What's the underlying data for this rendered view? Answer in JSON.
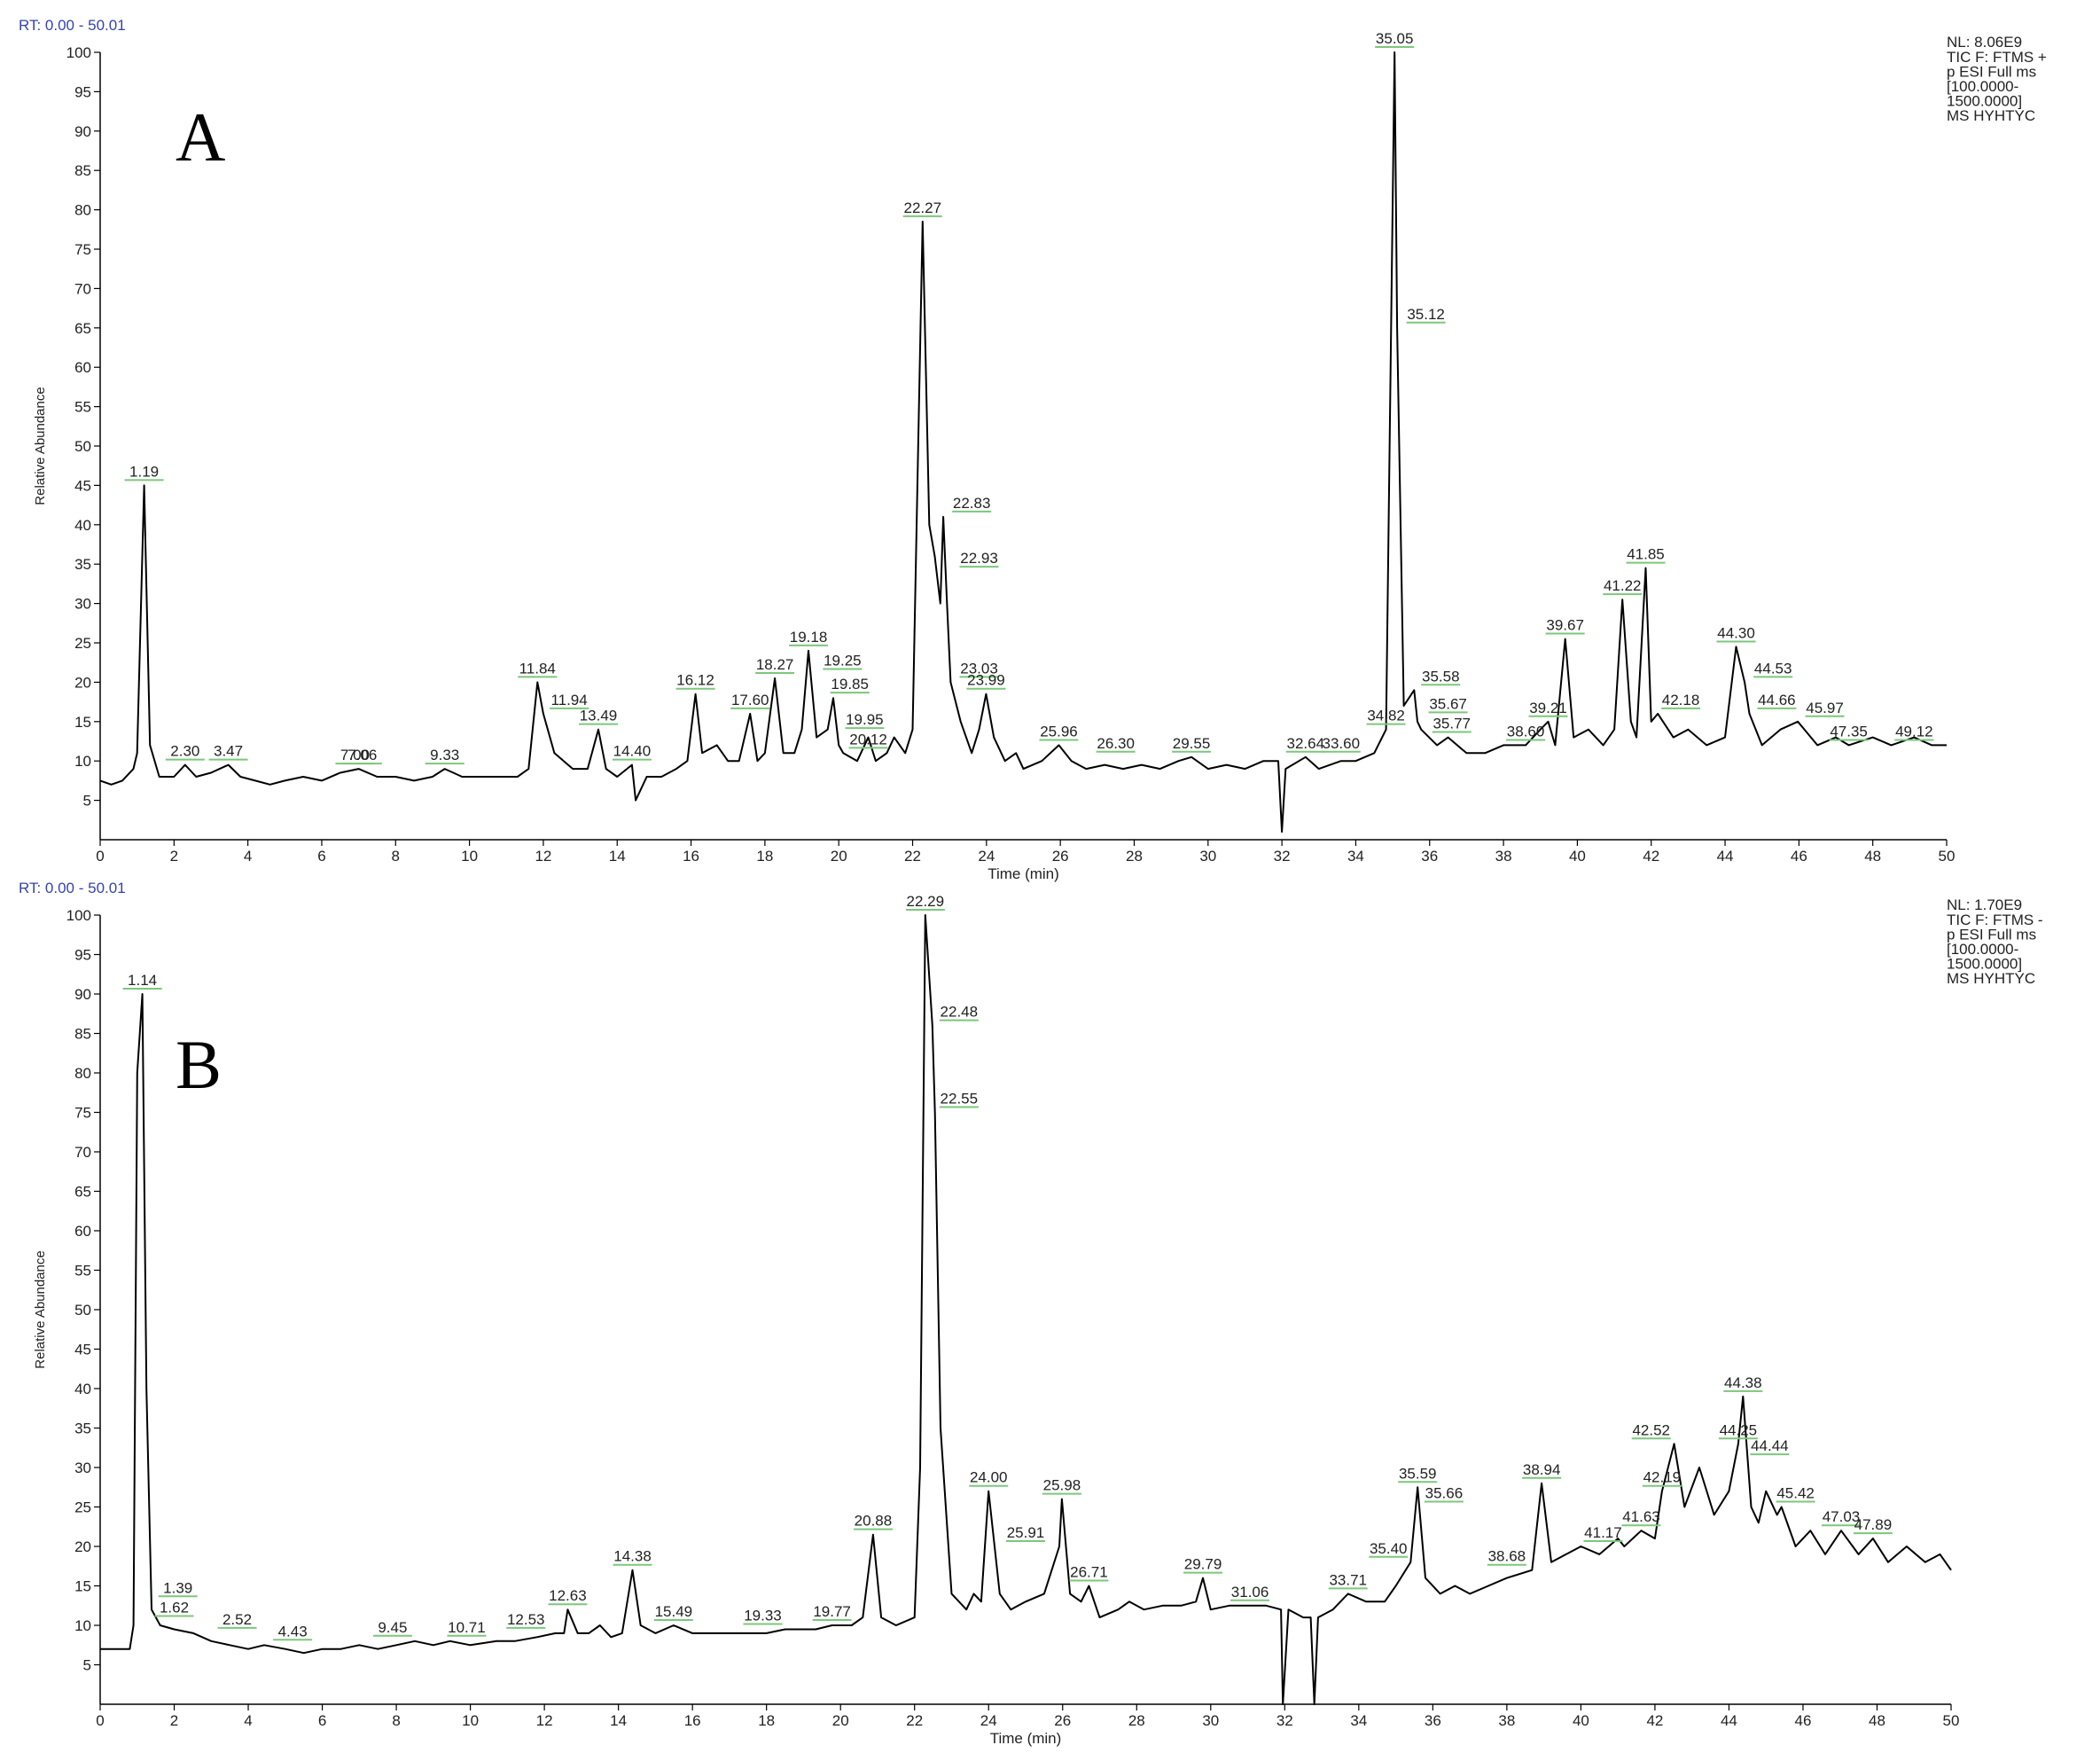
{
  "chart_data": [
    {
      "type": "line",
      "panel": "A",
      "rt": "RT: 0.00 - 50.01",
      "nl": "NL: 8.06E9",
      "info": [
        "TIC F: FTMS +",
        "p ESI Full ms",
        "[100.0000-",
        "1500.0000]",
        "MS HYHTYC"
      ],
      "ylabel": "Relative Abundance",
      "xlabel": "Time (min)",
      "xlim": [
        0,
        50
      ],
      "ylim": [
        0,
        100
      ],
      "xticks": [
        0,
        2,
        4,
        6,
        8,
        10,
        12,
        14,
        16,
        18,
        20,
        22,
        24,
        26,
        28,
        30,
        32,
        34,
        36,
        38,
        40,
        42,
        44,
        46,
        48,
        50
      ],
      "yticks": [
        5,
        10,
        15,
        20,
        25,
        30,
        35,
        40,
        45,
        50,
        55,
        60,
        65,
        70,
        75,
        80,
        85,
        90,
        95,
        100
      ],
      "annotation_line_color": "#7cc77c",
      "x": [
        0,
        0.3,
        0.6,
        0.9,
        1.0,
        1.19,
        1.35,
        1.6,
        2.0,
        2.3,
        2.6,
        3.0,
        3.47,
        3.8,
        4.2,
        4.6,
        5.0,
        5.5,
        6.0,
        6.5,
        7.0,
        7.5,
        8.0,
        8.5,
        9.0,
        9.33,
        9.8,
        10.3,
        10.8,
        11.3,
        11.6,
        11.84,
        12.0,
        12.3,
        12.8,
        13.2,
        13.49,
        13.7,
        14.0,
        14.4,
        14.5,
        14.8,
        15.2,
        15.6,
        15.9,
        16.12,
        16.3,
        16.7,
        17.0,
        17.3,
        17.6,
        17.8,
        18.0,
        18.27,
        18.5,
        18.8,
        19.0,
        19.18,
        19.4,
        19.7,
        19.85,
        20.0,
        20.12,
        20.5,
        20.8,
        21.0,
        21.3,
        21.5,
        21.8,
        22.0,
        22.27,
        22.45,
        22.6,
        22.75,
        22.83,
        22.93,
        23.03,
        23.3,
        23.6,
        23.8,
        23.99,
        24.2,
        24.5,
        24.8,
        25.0,
        25.5,
        25.96,
        26.3,
        26.7,
        27.2,
        27.7,
        28.2,
        28.7,
        29.2,
        29.55,
        30.0,
        30.5,
        31.0,
        31.5,
        31.9,
        32.0,
        32.1,
        32.64,
        33.0,
        33.6,
        34.0,
        34.5,
        34.82,
        35.05,
        35.12,
        35.3,
        35.58,
        35.67,
        35.77,
        36.2,
        36.5,
        37.0,
        37.5,
        38.0,
        38.6,
        39.0,
        39.21,
        39.4,
        39.67,
        39.9,
        40.3,
        40.7,
        41.0,
        41.22,
        41.45,
        41.6,
        41.85,
        42.0,
        42.18,
        42.6,
        43.0,
        43.5,
        44.0,
        44.3,
        44.53,
        44.66,
        45.0,
        45.5,
        45.97,
        46.5,
        47.0,
        47.35,
        48.0,
        48.5,
        49.12,
        49.6,
        50.0
      ],
      "series": [
        {
          "color": "#000000",
          "values": [
            7.5,
            7,
            7.5,
            9,
            11,
            45,
            12,
            8,
            8,
            9.5,
            8,
            8.5,
            9.5,
            8,
            7.5,
            7,
            7.5,
            8,
            7.5,
            8.5,
            9,
            8,
            8,
            7.5,
            8,
            9,
            8,
            8,
            8,
            8,
            9,
            20,
            16,
            11,
            9,
            9,
            14,
            9,
            8,
            9.5,
            5,
            8,
            8,
            9,
            10,
            18.5,
            11,
            12,
            10,
            10,
            16,
            10,
            11,
            20.5,
            11,
            11,
            14,
            24,
            13,
            14,
            18,
            12,
            11,
            10,
            13,
            10,
            11,
            13,
            11,
            14,
            78.5,
            40,
            36,
            30,
            41,
            30,
            20,
            15,
            11,
            14,
            18.5,
            13,
            10,
            11,
            9,
            10,
            12,
            10,
            9,
            9.5,
            9,
            9.5,
            9,
            10,
            10.5,
            9,
            9.5,
            9,
            10,
            10,
            1,
            9,
            10.5,
            9,
            10,
            10,
            11,
            14,
            100,
            65,
            17,
            19,
            15,
            14,
            12,
            13,
            11,
            11,
            12,
            12,
            14,
            15,
            12,
            25.5,
            13,
            14,
            12,
            14,
            30.5,
            15,
            13,
            34.5,
            15,
            16,
            13,
            14,
            12,
            13,
            24.5,
            20,
            16,
            12,
            14,
            15,
            12,
            13,
            12,
            13,
            12,
            13,
            12,
            12
          ]
        }
      ],
      "annotations": [
        {
          "text": "1.19",
          "x": 1.19,
          "y": 45
        },
        {
          "text": "2.30",
          "x": 2.3,
          "y": 9.5
        },
        {
          "text": "3.47",
          "x": 3.47,
          "y": 9.5
        },
        {
          "text": "7.00",
          "x": 6.9,
          "y": 9
        },
        {
          "text": "7.06",
          "x": 7.1,
          "y": 9
        },
        {
          "text": "9.33",
          "x": 9.33,
          "y": 9
        },
        {
          "text": "11.84",
          "x": 11.84,
          "y": 20
        },
        {
          "text": "11.94",
          "x": 12.7,
          "y": 16
        },
        {
          "text": "13.49",
          "x": 13.49,
          "y": 14
        },
        {
          "text": "14.40",
          "x": 14.4,
          "y": 9.5
        },
        {
          "text": "16.12",
          "x": 16.12,
          "y": 18.5
        },
        {
          "text": "17.60",
          "x": 17.6,
          "y": 16
        },
        {
          "text": "18.27",
          "x": 18.27,
          "y": 20.5
        },
        {
          "text": "19.18",
          "x": 19.18,
          "y": 24
        },
        {
          "text": "19.25",
          "x": 20.1,
          "y": 21
        },
        {
          "text": "19.85",
          "x": 20.3,
          "y": 18
        },
        {
          "text": "19.95",
          "x": 20.7,
          "y": 13.5
        },
        {
          "text": "20.12",
          "x": 20.8,
          "y": 11
        },
        {
          "text": "22.27",
          "x": 22.27,
          "y": 78.5
        },
        {
          "text": "22.83",
          "x": 23.6,
          "y": 41
        },
        {
          "text": "22.93",
          "x": 23.8,
          "y": 34
        },
        {
          "text": "23.03",
          "x": 23.8,
          "y": 20
        },
        {
          "text": "23.99",
          "x": 23.99,
          "y": 18.5
        },
        {
          "text": "25.96",
          "x": 25.96,
          "y": 12
        },
        {
          "text": "26.30",
          "x": 27.5,
          "y": 10.5
        },
        {
          "text": "29.55",
          "x": 29.55,
          "y": 10.5
        },
        {
          "text": "32.64",
          "x": 32.64,
          "y": 10.5
        },
        {
          "text": "33.60",
          "x": 33.6,
          "y": 10.5
        },
        {
          "text": "34.82",
          "x": 34.82,
          "y": 14
        },
        {
          "text": "35.05",
          "x": 35.05,
          "y": 100
        },
        {
          "text": "35.12",
          "x": 35.9,
          "y": 65
        },
        {
          "text": "35.58",
          "x": 36.3,
          "y": 19
        },
        {
          "text": "35.67",
          "x": 36.5,
          "y": 15.5
        },
        {
          "text": "35.77",
          "x": 36.6,
          "y": 13
        },
        {
          "text": "38.60",
          "x": 38.6,
          "y": 12
        },
        {
          "text": "39.21",
          "x": 39.21,
          "y": 15
        },
        {
          "text": "39.67",
          "x": 39.67,
          "y": 25.5
        },
        {
          "text": "41.22",
          "x": 41.22,
          "y": 30.5
        },
        {
          "text": "41.85",
          "x": 41.85,
          "y": 34.5
        },
        {
          "text": "42.18",
          "x": 42.8,
          "y": 16
        },
        {
          "text": "44.30",
          "x": 44.3,
          "y": 24.5
        },
        {
          "text": "44.53",
          "x": 45.3,
          "y": 20
        },
        {
          "text": "44.66",
          "x": 45.4,
          "y": 16
        },
        {
          "text": "45.97",
          "x": 46.7,
          "y": 15
        },
        {
          "text": "47.35",
          "x": 47.35,
          "y": 12
        },
        {
          "text": "49.12",
          "x": 49.12,
          "y": 12
        }
      ]
    },
    {
      "type": "line",
      "panel": "B",
      "rt": "RT: 0.00 - 50.01",
      "nl": "NL: 1.70E9",
      "info": [
        "TIC F: FTMS -",
        "p ESI Full ms",
        "[100.0000-",
        "1500.0000]",
        "MS HYHTYC"
      ],
      "ylabel": "Relative Abundance",
      "xlabel": "Time (min)",
      "xlim": [
        0,
        50
      ],
      "ylim": [
        0,
        100
      ],
      "xticks": [
        0,
        2,
        4,
        6,
        8,
        10,
        12,
        14,
        16,
        18,
        20,
        22,
        24,
        26,
        28,
        30,
        32,
        34,
        36,
        38,
        40,
        42,
        44,
        46,
        48,
        50
      ],
      "yticks": [
        5,
        10,
        15,
        20,
        25,
        30,
        35,
        40,
        45,
        50,
        55,
        60,
        65,
        70,
        75,
        80,
        85,
        90,
        95,
        100
      ],
      "annotation_line_color": "#7cc77c",
      "x": [
        0,
        0.5,
        0.8,
        0.9,
        1.0,
        1.14,
        1.25,
        1.39,
        1.62,
        2.0,
        2.52,
        3.0,
        3.5,
        4.0,
        4.43,
        5.0,
        5.5,
        6.0,
        6.5,
        7.0,
        7.5,
        8.0,
        8.5,
        9.0,
        9.45,
        10.0,
        10.71,
        11.2,
        11.8,
        12.3,
        12.53,
        12.63,
        12.9,
        13.2,
        13.5,
        13.8,
        14.1,
        14.38,
        14.6,
        15.0,
        15.49,
        16.0,
        16.5,
        17.0,
        17.5,
        18.0,
        18.5,
        19.33,
        19.77,
        20.3,
        20.6,
        20.88,
        21.1,
        21.5,
        22.0,
        22.15,
        22.29,
        22.48,
        22.55,
        22.7,
        23.0,
        23.4,
        23.6,
        23.8,
        24.0,
        24.3,
        24.6,
        25.0,
        25.5,
        25.91,
        25.98,
        26.2,
        26.5,
        26.71,
        27.0,
        27.5,
        27.8,
        28.2,
        28.7,
        29.2,
        29.6,
        29.79,
        30.0,
        30.5,
        31.06,
        31.5,
        31.9,
        31.95,
        32.1,
        32.5,
        32.7,
        32.8,
        32.9,
        33.3,
        33.71,
        34.2,
        34.7,
        35.0,
        35.4,
        35.59,
        35.8,
        36.2,
        36.6,
        37.0,
        37.5,
        38.0,
        38.68,
        38.94,
        39.2,
        39.6,
        40.0,
        40.5,
        41.0,
        41.17,
        41.63,
        42.0,
        42.19,
        42.52,
        42.8,
        43.2,
        43.6,
        44.0,
        44.25,
        44.38,
        44.6,
        44.8,
        45.0,
        45.3,
        45.42,
        45.8,
        46.2,
        46.6,
        47.03,
        47.5,
        47.89,
        48.3,
        48.8,
        49.3,
        49.7,
        50.0
      ],
      "series": [
        {
          "color": "#000000",
          "values": [
            7,
            7,
            7,
            10,
            80,
            90,
            40,
            12,
            10,
            9.5,
            9,
            8,
            7.5,
            7,
            7.5,
            7,
            6.5,
            7,
            7,
            7.5,
            7,
            7.5,
            8,
            7.5,
            8,
            7.5,
            8,
            8,
            8.5,
            9,
            9,
            12,
            9,
            9,
            10,
            8.5,
            9,
            17,
            10,
            9,
            10,
            9,
            9,
            9,
            9,
            9,
            9.5,
            9.5,
            10,
            10,
            11,
            21.5,
            11,
            10,
            11,
            30,
            100,
            86,
            75,
            35,
            14,
            12,
            14,
            13,
            27,
            14,
            12,
            13,
            14,
            20,
            26,
            14,
            13,
            15,
            11,
            12,
            13,
            12,
            12.5,
            12.5,
            13,
            16,
            12,
            12.5,
            12.5,
            12.5,
            12,
            0,
            12,
            11,
            11,
            0,
            11,
            12,
            14,
            13,
            13,
            15,
            18,
            27.5,
            16,
            14,
            15,
            14,
            15,
            16,
            17,
            28,
            18,
            19,
            20,
            19,
            21,
            20,
            22,
            21,
            27,
            33,
            25,
            30,
            24,
            27,
            33,
            39,
            25,
            23,
            27,
            24,
            25,
            20,
            22,
            19,
            22,
            19,
            21,
            18,
            20,
            18,
            19,
            17
          ]
        }
      ],
      "annotations": [
        {
          "text": "1.14",
          "x": 1.14,
          "y": 90
        },
        {
          "text": "1.39",
          "x": 2.1,
          "y": 13
        },
        {
          "text": "1.62",
          "x": 2.0,
          "y": 10.5
        },
        {
          "text": "2.52",
          "x": 3.7,
          "y": 9
        },
        {
          "text": "4.43",
          "x": 5.2,
          "y": 7.5
        },
        {
          "text": "9.45",
          "x": 7.9,
          "y": 8
        },
        {
          "text": "10.71",
          "x": 9.9,
          "y": 8
        },
        {
          "text": "12.53",
          "x": 11.5,
          "y": 9
        },
        {
          "text": "12.63",
          "x": 12.63,
          "y": 12
        },
        {
          "text": "14.38",
          "x": 14.38,
          "y": 17
        },
        {
          "text": "15.49",
          "x": 15.49,
          "y": 10
        },
        {
          "text": "19.33",
          "x": 17.9,
          "y": 9.5
        },
        {
          "text": "19.77",
          "x": 19.77,
          "y": 10
        },
        {
          "text": "20.88",
          "x": 20.88,
          "y": 21.5
        },
        {
          "text": "22.29",
          "x": 22.29,
          "y": 100
        },
        {
          "text": "22.48",
          "x": 23.2,
          "y": 86
        },
        {
          "text": "22.55",
          "x": 23.2,
          "y": 75
        },
        {
          "text": "24.00",
          "x": 24.0,
          "y": 27
        },
        {
          "text": "25.91",
          "x": 25.0,
          "y": 20
        },
        {
          "text": "25.98",
          "x": 25.98,
          "y": 26
        },
        {
          "text": "26.71",
          "x": 26.71,
          "y": 15
        },
        {
          "text": "29.79",
          "x": 29.79,
          "y": 16
        },
        {
          "text": "31.06",
          "x": 31.06,
          "y": 12.5
        },
        {
          "text": "33.71",
          "x": 33.71,
          "y": 14
        },
        {
          "text": "35.40",
          "x": 34.8,
          "y": 18
        },
        {
          "text": "35.59",
          "x": 35.59,
          "y": 27.5
        },
        {
          "text": "35.66",
          "x": 36.3,
          "y": 25
        },
        {
          "text": "38.68",
          "x": 38.0,
          "y": 17
        },
        {
          "text": "38.94",
          "x": 38.94,
          "y": 28
        },
        {
          "text": "41.17",
          "x": 40.6,
          "y": 20
        },
        {
          "text": "41.63",
          "x": 41.63,
          "y": 22
        },
        {
          "text": "42.19",
          "x": 42.19,
          "y": 27
        },
        {
          "text": "42.52",
          "x": 41.9,
          "y": 33
        },
        {
          "text": "44.25",
          "x": 44.25,
          "y": 33
        },
        {
          "text": "44.38",
          "x": 44.38,
          "y": 39
        },
        {
          "text": "44.44",
          "x": 45.1,
          "y": 31
        },
        {
          "text": "45.42",
          "x": 45.8,
          "y": 25
        },
        {
          "text": "47.03",
          "x": 47.03,
          "y": 22
        },
        {
          "text": "47.89",
          "x": 47.89,
          "y": 21
        }
      ]
    }
  ]
}
